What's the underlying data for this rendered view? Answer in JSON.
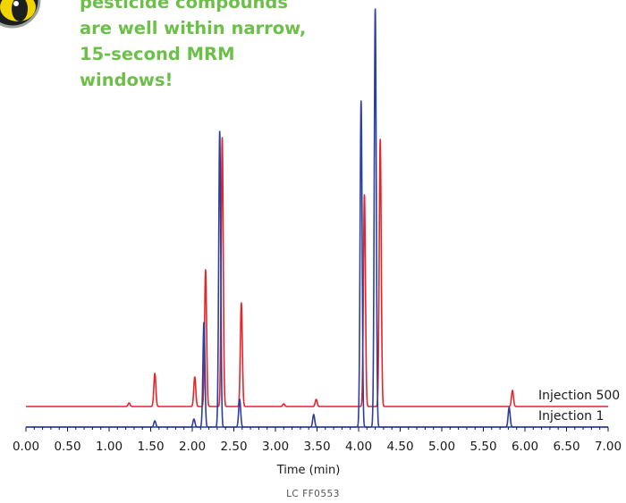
{
  "callout": {
    "lines": [
      "pesticide compounds",
      "are well within narrow,",
      "15-second MRM",
      "windows!"
    ]
  },
  "colors": {
    "callout": "#6cc04a",
    "injection_500": "#e3262c",
    "injection_1": "#2b3f9c",
    "axis": "#1a1a1a"
  },
  "logo": {
    "icon": "eye-logo-icon"
  },
  "footer": {
    "code": "LC FF0553"
  },
  "chart_data": {
    "type": "line",
    "title": "",
    "xlabel": "Time (min)",
    "ylabel": "",
    "xlim": [
      0,
      7
    ],
    "x_ticks": [
      "0.00",
      "0.50",
      "1.00",
      "1.50",
      "2.00",
      "2.50",
      "3.00",
      "3.50",
      "4.00",
      "4.50",
      "5.00",
      "5.50",
      "6.00",
      "6.50",
      "7.00"
    ],
    "grid": false,
    "legend": "inline-right",
    "series": [
      {
        "name": "Injection 500",
        "color": "#e3262c",
        "baseline": 0,
        "peaks": [
          {
            "t": 1.24,
            "h": 4
          },
          {
            "t": 1.55,
            "h": 37
          },
          {
            "t": 2.03,
            "h": 33
          },
          {
            "t": 2.16,
            "h": 153
          },
          {
            "t": 2.36,
            "h": 301
          },
          {
            "t": 2.59,
            "h": 116
          },
          {
            "t": 3.1,
            "h": 3
          },
          {
            "t": 3.49,
            "h": 8
          },
          {
            "t": 4.07,
            "h": 237
          },
          {
            "t": 4.26,
            "h": 299
          },
          {
            "t": 5.85,
            "h": 18
          }
        ]
      },
      {
        "name": "Injection 1",
        "color": "#2b3f9c",
        "baseline": 0,
        "peaks": [
          {
            "t": 1.55,
            "h": 7
          },
          {
            "t": 2.02,
            "h": 9
          },
          {
            "t": 2.14,
            "h": 117
          },
          {
            "t": 2.33,
            "h": 331
          },
          {
            "t": 2.57,
            "h": 31
          },
          {
            "t": 3.46,
            "h": 14
          },
          {
            "t": 4.03,
            "h": 365
          },
          {
            "t": 4.2,
            "h": 468
          },
          {
            "t": 5.81,
            "h": 22
          }
        ]
      }
    ]
  }
}
